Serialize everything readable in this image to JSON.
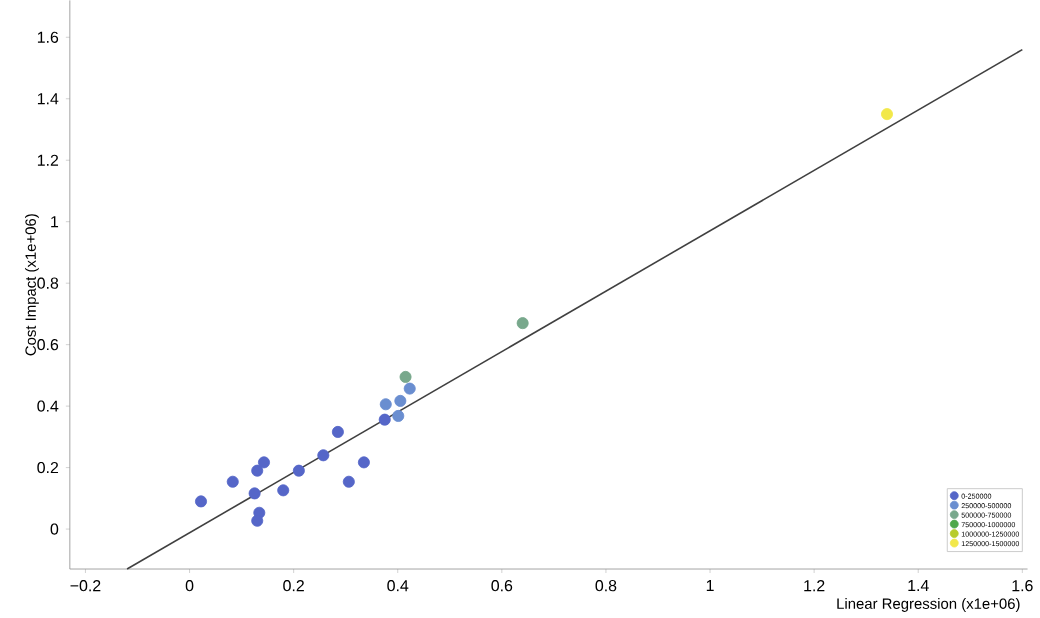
{
  "chart_data": {
    "type": "scatter",
    "xlabel": "Linear Regression (x1e+06)",
    "ylabel": "Cost Impact (x1e+06)",
    "xlim": [
      -0.23,
      1.61
    ],
    "ylim": [
      -0.13,
      1.72
    ],
    "xticks": [
      {
        "value": -0.2,
        "label": "−0.2"
      },
      0,
      0.2,
      0.4,
      0.6,
      0.8,
      1,
      1.2,
      1.4,
      1.6
    ],
    "yticks": [
      0,
      0.2,
      0.4,
      0.6,
      0.8,
      1,
      1.2,
      1.4,
      1.6
    ],
    "marker": "circle",
    "legend": "bottom right",
    "series": [
      {
        "name": "0-250000",
        "color": "#5566c8",
        "x": [
          0.022,
          0.083,
          0.125,
          0.13,
          0.143,
          0.134,
          0.13,
          0.18,
          0.21,
          0.257,
          0.285,
          0.306,
          0.335,
          0.375
        ],
        "values": [
          0.09,
          0.154,
          0.116,
          0.19,
          0.217,
          0.053,
          0.027,
          0.126,
          0.19,
          0.24,
          0.316,
          0.154,
          0.217,
          0.356
        ]
      },
      {
        "name": "250000-500000",
        "color": "#6a8ed0",
        "x": [
          0.377,
          0.405,
          0.401,
          0.423
        ],
        "values": [
          0.406,
          0.417,
          0.368,
          0.457
        ]
      },
      {
        "name": "500000-750000",
        "color": "#78a88c",
        "x": [
          0.415,
          0.64
        ],
        "values": [
          0.495,
          0.67
        ]
      },
      {
        "name": "750000-1000000",
        "color": "#4fa84a"
      },
      {
        "name": "1000000-1250000",
        "color": "#b8cc2c"
      },
      {
        "name": "1250000-1500000",
        "color": "#f2e84a",
        "x": [
          1.34
        ],
        "values": [
          1.35
        ]
      },
      {
        "type": "line",
        "marker": "none",
        "color": "#404040",
        "x": [
          -0.12,
          1.6
        ],
        "values": [
          -0.13,
          1.56
        ]
      }
    ]
  }
}
